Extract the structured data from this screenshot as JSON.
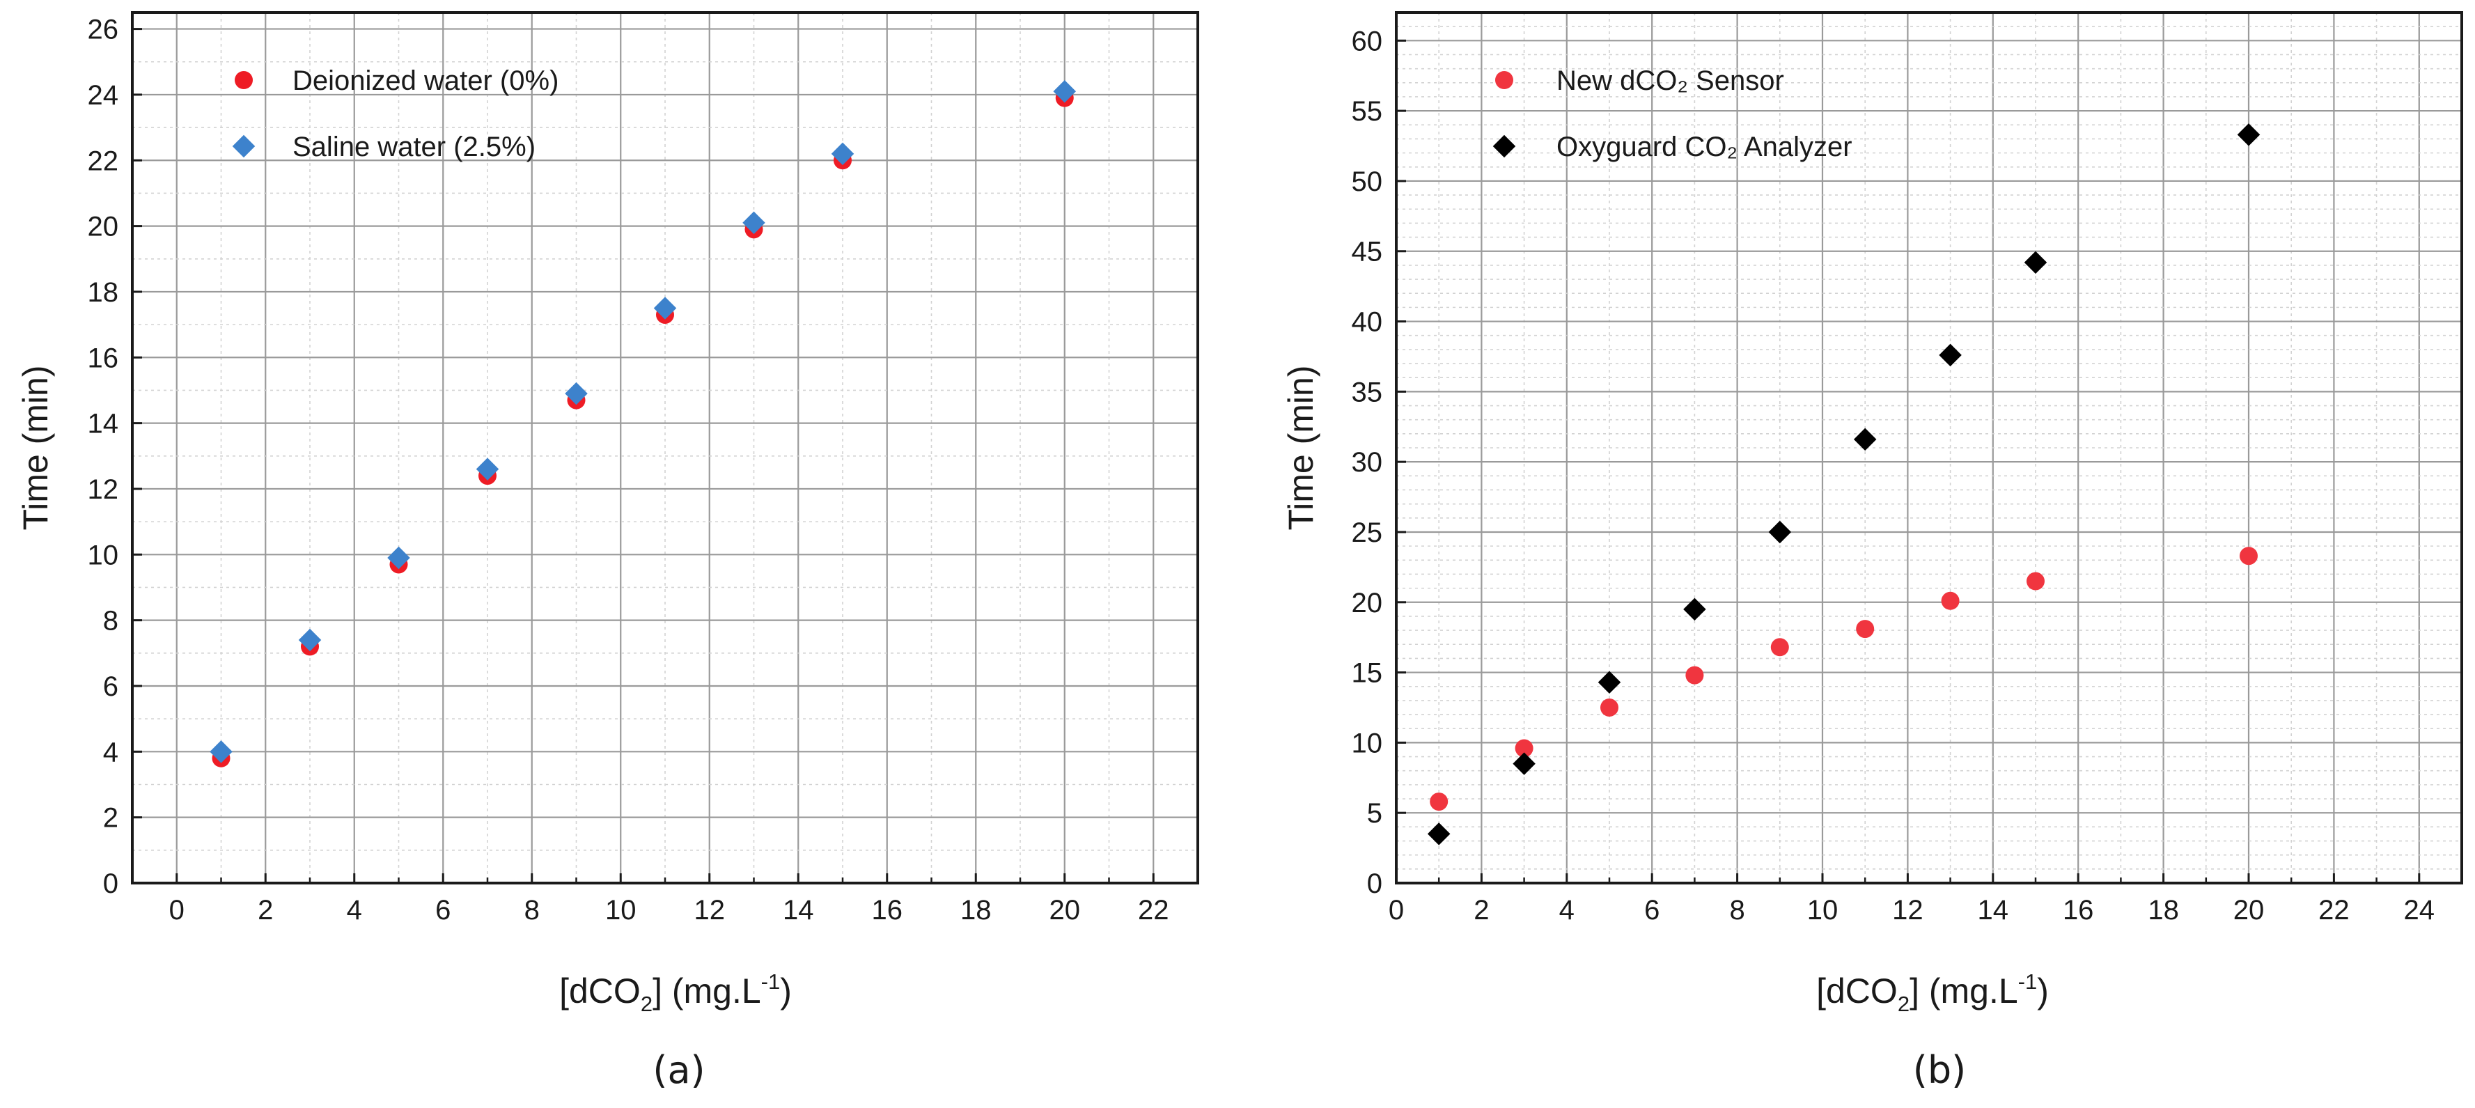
{
  "chart_data": [
    {
      "type": "scatter",
      "panel_label": "(a)",
      "title": "",
      "xlabel": {
        "prefix": "[dCO",
        "sub": "2",
        "mid": "] (mg.L",
        "sup": "-1",
        "suffix": ")"
      },
      "ylabel": "Time (min)",
      "xlim": [
        -1,
        23
      ],
      "ylim": [
        0,
        26.5
      ],
      "xticks": [
        0,
        2,
        4,
        6,
        8,
        10,
        12,
        14,
        16,
        18,
        20,
        22
      ],
      "xtick_labels": [
        "0",
        "2",
        "4",
        "6",
        "8",
        "10",
        "12",
        "14",
        "16",
        "18",
        "20",
        "22"
      ],
      "yticks": [
        0,
        2,
        4,
        6,
        8,
        10,
        12,
        14,
        16,
        18,
        20,
        22,
        24,
        26
      ],
      "ytick_labels": [
        "0",
        "2",
        "4",
        "6",
        "8",
        "10",
        "12",
        "14",
        "16",
        "18",
        "20",
        "22",
        "24",
        "26"
      ],
      "major_grid_x": 2,
      "minor_grid_x": 1,
      "major_grid_y": 2,
      "minor_grid_y": 1,
      "legend_position": "top-left",
      "series": [
        {
          "name": "Deionized water (0%)",
          "marker": "circle",
          "color": "#ee1c25",
          "x": [
            1,
            3,
            5,
            7,
            9,
            11,
            13,
            15,
            20
          ],
          "y": [
            3.8,
            7.2,
            9.7,
            12.4,
            14.7,
            17.3,
            19.9,
            22.0,
            23.9
          ]
        },
        {
          "name": "Saline water (2.5%)",
          "marker": "diamond",
          "color": "#3d82cc",
          "x": [
            1,
            3,
            5,
            7,
            9,
            11,
            13,
            15,
            20
          ],
          "y": [
            4.0,
            7.4,
            9.9,
            12.6,
            14.9,
            17.5,
            20.1,
            22.2,
            24.1
          ]
        }
      ]
    },
    {
      "type": "scatter",
      "panel_label": "(b)",
      "title": "",
      "xlabel": {
        "prefix": "[dCO",
        "sub": "2",
        "mid": "] (mg.L",
        "sup": "-1",
        "suffix": ")"
      },
      "ylabel": "Time (min)",
      "xlim": [
        0,
        25
      ],
      "ylim": [
        0,
        62
      ],
      "xticks": [
        0,
        2,
        4,
        6,
        8,
        10,
        12,
        14,
        16,
        18,
        20,
        22,
        24
      ],
      "xtick_labels": [
        "0",
        "2",
        "4",
        "6",
        "8",
        "10",
        "12",
        "14",
        "16",
        "18",
        "20",
        "22",
        "24"
      ],
      "yticks": [
        0,
        5,
        10,
        15,
        20,
        25,
        30,
        35,
        40,
        45,
        50,
        55,
        60
      ],
      "ytick_labels": [
        "0",
        "5",
        "10",
        "15",
        "20",
        "25",
        "30",
        "35",
        "40",
        "45",
        "50",
        "55",
        "60"
      ],
      "major_grid_x": 2,
      "minor_grid_x": 1,
      "major_grid_y": 5,
      "minor_grid_y": 1,
      "legend_position": "top-left",
      "series": [
        {
          "name": "New dCO₂ Sensor",
          "marker": "circle",
          "color": "#f0353f",
          "x": [
            1,
            3,
            5,
            7,
            9,
            11,
            13,
            15,
            20
          ],
          "y": [
            5.8,
            9.6,
            12.5,
            14.8,
            16.8,
            18.1,
            20.1,
            21.5,
            23.3
          ]
        },
        {
          "name": "Oxyguard CO₂ Analyzer",
          "marker": "diamond",
          "color": "#000000",
          "x": [
            1,
            3,
            5,
            7,
            9,
            11,
            13,
            15,
            20
          ],
          "y": [
            3.5,
            8.5,
            14.3,
            19.5,
            25.0,
            31.6,
            37.6,
            44.2,
            53.3
          ]
        }
      ]
    }
  ]
}
